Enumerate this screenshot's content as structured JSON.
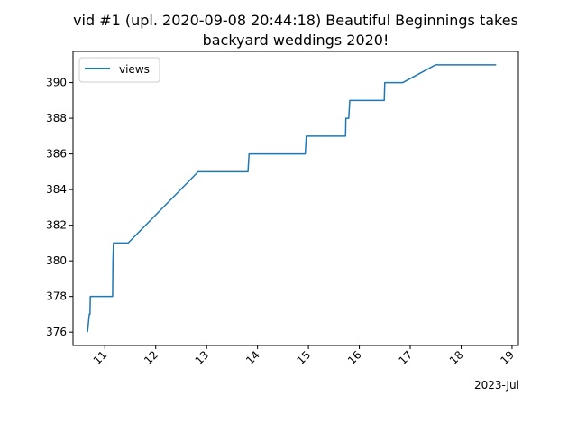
{
  "chart_data": {
    "type": "line",
    "title_lines": [
      "vid #1 (upl. 2020-09-08 20:44:18) Beautiful Beginnings takes",
      "backyard weddings 2020!"
    ],
    "xlabel": "",
    "ylabel": "",
    "x_axis_offset_label": "2023-Jul",
    "x_tick_labels": [
      "11",
      "12",
      "13",
      "14",
      "15",
      "16",
      "17",
      "18",
      "19"
    ],
    "y_tick_labels": [
      "376",
      "378",
      "380",
      "382",
      "384",
      "386",
      "388",
      "390"
    ],
    "xlim": [
      "2023-07-10T09:00",
      "2023-07-19T03:00"
    ],
    "ylim": [
      375.25,
      391.75
    ],
    "grid": false,
    "legend_position": "top-left",
    "series": [
      {
        "name": "views",
        "color": "#1f77b4",
        "points": [
          [
            "2023-07-10T15:50",
            376
          ],
          [
            "2023-07-10T16:40",
            377
          ],
          [
            "2023-07-10T17:00",
            377
          ],
          [
            "2023-07-10T17:10",
            378
          ],
          [
            "2023-07-11T03:40",
            378
          ],
          [
            "2023-07-11T03:50",
            380
          ],
          [
            "2023-07-11T04:05",
            381
          ],
          [
            "2023-07-11T11:00",
            381
          ],
          [
            "2023-07-12T20:00",
            385
          ],
          [
            "2023-07-13T19:30",
            385
          ],
          [
            "2023-07-13T20:00",
            386
          ],
          [
            "2023-07-14T22:30",
            386
          ],
          [
            "2023-07-14T23:00",
            387
          ],
          [
            "2023-07-15T17:30",
            387
          ],
          [
            "2023-07-15T17:40",
            388
          ],
          [
            "2023-07-15T19:00",
            388
          ],
          [
            "2023-07-15T19:30",
            389
          ],
          [
            "2023-07-16T11:45",
            389
          ],
          [
            "2023-07-16T12:00",
            390
          ],
          [
            "2023-07-16T20:30",
            390
          ],
          [
            "2023-07-17T12:00",
            391
          ],
          [
            "2023-07-18T16:30",
            391
          ]
        ]
      }
    ]
  }
}
